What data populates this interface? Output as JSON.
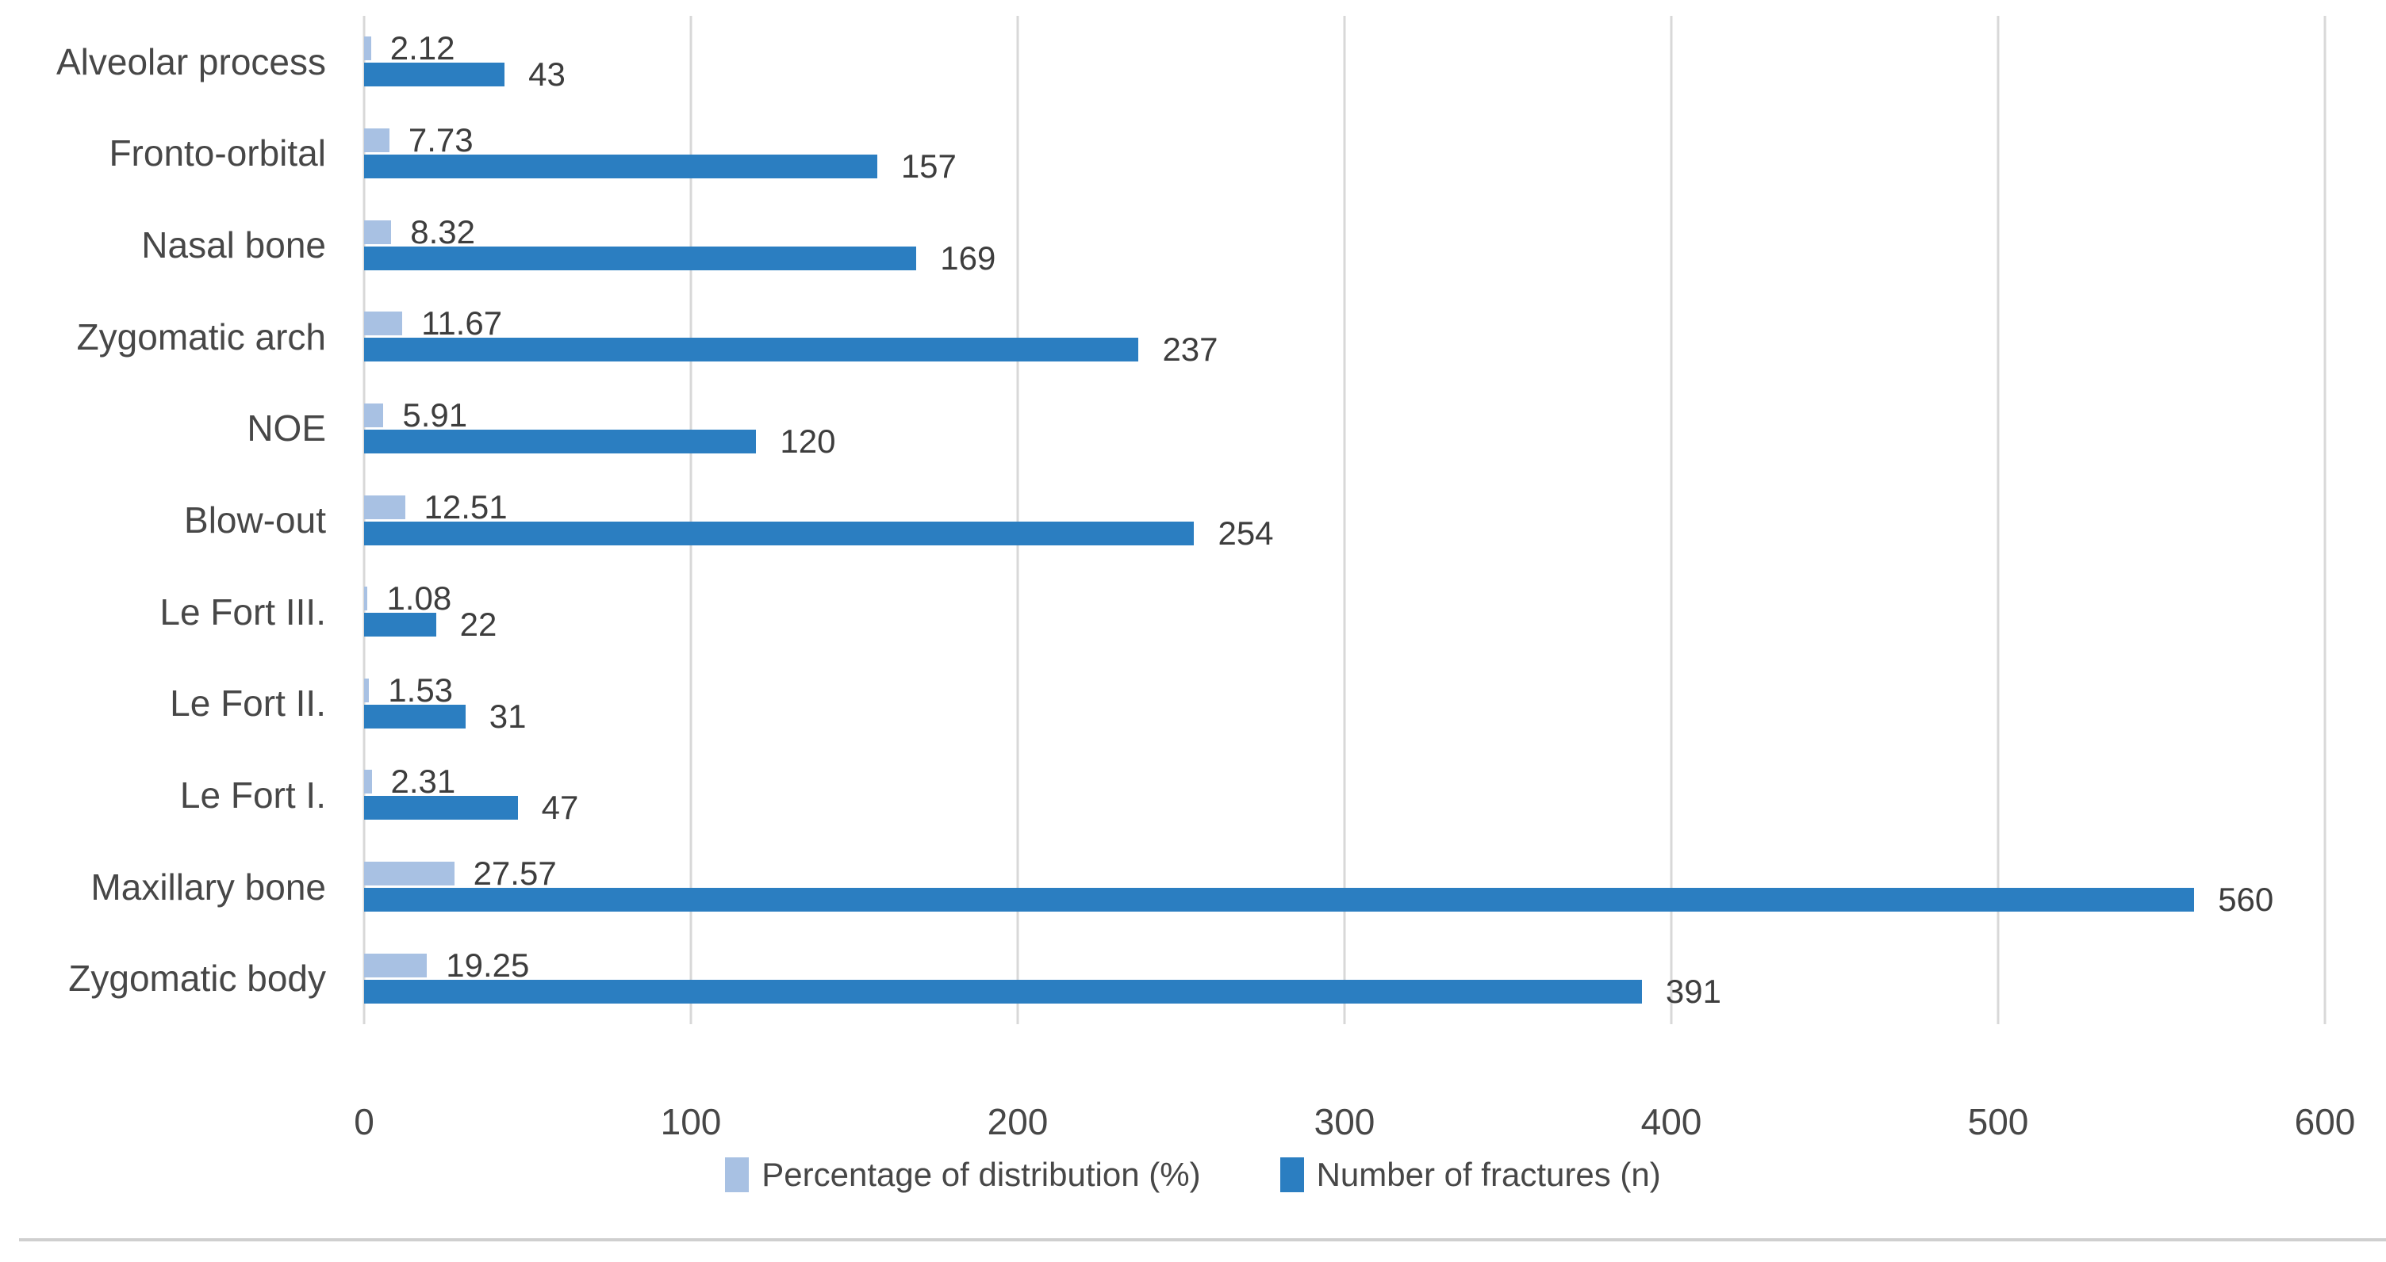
{
  "figure": {
    "kind": "grouped horizontal bar chart of facial fracture distribution",
    "background": "#ffffff"
  },
  "chart_data": {
    "type": "bar",
    "orientation": "horizontal",
    "title": "",
    "xlabel": "",
    "ylabel": "",
    "categories": [
      "Alveolar process",
      "Fronto-orbital",
      "Nasal bone",
      "Zygomatic arch",
      "NOE",
      "Blow-out",
      "Le Fort III.",
      "Le Fort II.",
      "Le Fort I.",
      "Maxillary bone",
      "Zygomatic body"
    ],
    "series": [
      {
        "name": "Percentage of distribution (%)",
        "color": "#a8c1e3",
        "values": [
          2.12,
          7.73,
          8.32,
          11.67,
          5.91,
          12.51,
          1.08,
          1.53,
          2.31,
          27.57,
          19.25
        ],
        "labels": [
          "2.12",
          "7.73",
          "8.32",
          "11.67",
          "5.91",
          "12.51",
          "1.08",
          "1.53",
          "2.31",
          "27.57",
          "19.25"
        ]
      },
      {
        "name": "Number of fractures (n)",
        "color": "#2b7ec1",
        "values": [
          43,
          157,
          169,
          237,
          120,
          254,
          22,
          31,
          47,
          560,
          391
        ],
        "labels": [
          "43",
          "157",
          "169",
          "237",
          "120",
          "254",
          "22",
          "31",
          "47",
          "560",
          "391"
        ]
      }
    ],
    "xlim": [
      0,
      600
    ],
    "x_ticks": [
      "0",
      "100",
      "200",
      "300",
      "400",
      "500",
      "600"
    ],
    "grid": "vertical gridlines on",
    "gridline_color": "#d8d8d8",
    "legend_position": "bottom-center",
    "value_labels": "outside end of each bar"
  }
}
